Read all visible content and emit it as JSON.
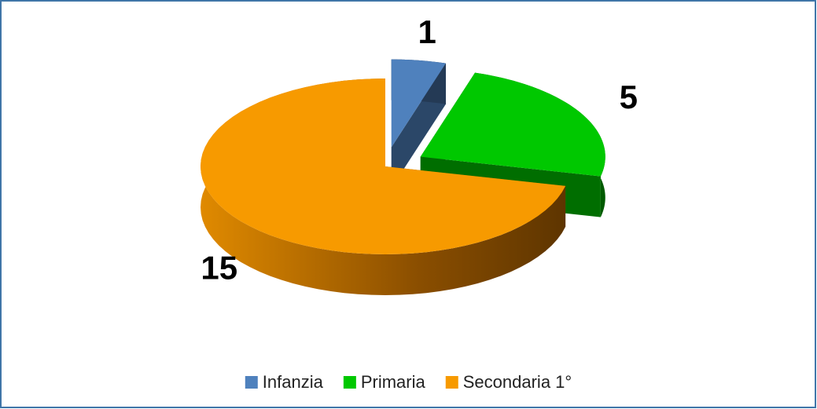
{
  "chart_data": {
    "type": "pie",
    "categories": [
      "Infanzia",
      "Primaria",
      "Secondaria 1°"
    ],
    "values": [
      1,
      5,
      15
    ],
    "colors": [
      "#4f81bd",
      "#00c800",
      "#f79a00"
    ],
    "legend": "bottom"
  }
}
